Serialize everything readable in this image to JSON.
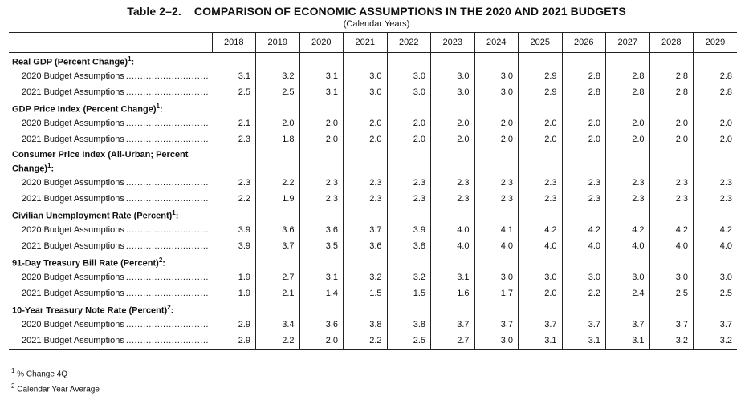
{
  "title": {
    "number": "Table 2–2.",
    "text": "COMPARISON OF ECONOMIC ASSUMPTIONS IN THE 2020 AND 2021 BUDGETS"
  },
  "subtitle": "(Calendar Years)",
  "years": [
    "2018",
    "2019",
    "2020",
    "2021",
    "2022",
    "2023",
    "2024",
    "2025",
    "2026",
    "2027",
    "2028",
    "2029"
  ],
  "sections": [
    {
      "title": "Real GDP (Percent Change)",
      "note": "1",
      "tall": false,
      "rows": [
        {
          "label": "2020 Budget Assumptions",
          "values": [
            "3.1",
            "3.2",
            "3.1",
            "3.0",
            "3.0",
            "3.0",
            "3.0",
            "2.9",
            "2.8",
            "2.8",
            "2.8",
            "2.8"
          ]
        },
        {
          "label": "2021 Budget Assumptions",
          "values": [
            "2.5",
            "2.5",
            "3.1",
            "3.0",
            "3.0",
            "3.0",
            "3.0",
            "2.9",
            "2.8",
            "2.8",
            "2.8",
            "2.8"
          ]
        }
      ]
    },
    {
      "title": "GDP Price Index (Percent Change)",
      "note": "1",
      "tall": false,
      "rows": [
        {
          "label": "2020 Budget Assumptions",
          "values": [
            "2.1",
            "2.0",
            "2.0",
            "2.0",
            "2.0",
            "2.0",
            "2.0",
            "2.0",
            "2.0",
            "2.0",
            "2.0",
            "2.0"
          ]
        },
        {
          "label": "2021 Budget Assumptions",
          "values": [
            "2.3",
            "1.8",
            "2.0",
            "2.0",
            "2.0",
            "2.0",
            "2.0",
            "2.0",
            "2.0",
            "2.0",
            "2.0",
            "2.0"
          ]
        }
      ]
    },
    {
      "title": "Consumer Price Index (All-Urban; Percent",
      "title2": "Change)",
      "note": "1",
      "tall": true,
      "rows": [
        {
          "label": "2020 Budget Assumptions",
          "values": [
            "2.3",
            "2.2",
            "2.3",
            "2.3",
            "2.3",
            "2.3",
            "2.3",
            "2.3",
            "2.3",
            "2.3",
            "2.3",
            "2.3"
          ]
        },
        {
          "label": "2021 Budget Assumptions",
          "values": [
            "2.2",
            "1.9",
            "2.3",
            "2.3",
            "2.3",
            "2.3",
            "2.3",
            "2.3",
            "2.3",
            "2.3",
            "2.3",
            "2.3"
          ]
        }
      ]
    },
    {
      "title": "Civilian Unemployment Rate (Percent)",
      "note": "1",
      "tall": false,
      "rows": [
        {
          "label": "2020 Budget Assumptions",
          "values": [
            "3.9",
            "3.6",
            "3.6",
            "3.7",
            "3.9",
            "4.0",
            "4.1",
            "4.2",
            "4.2",
            "4.2",
            "4.2",
            "4.2"
          ]
        },
        {
          "label": "2021 Budget Assumptions",
          "values": [
            "3.9",
            "3.7",
            "3.5",
            "3.6",
            "3.8",
            "4.0",
            "4.0",
            "4.0",
            "4.0",
            "4.0",
            "4.0",
            "4.0"
          ]
        }
      ]
    },
    {
      "title": "91-Day Treasury Bill Rate (Percent)",
      "note": "2",
      "tall": false,
      "rows": [
        {
          "label": "2020 Budget Assumptions",
          "values": [
            "1.9",
            "2.7",
            "3.1",
            "3.2",
            "3.2",
            "3.1",
            "3.0",
            "3.0",
            "3.0",
            "3.0",
            "3.0",
            "3.0"
          ]
        },
        {
          "label": "2021 Budget Assumptions",
          "values": [
            "1.9",
            "2.1",
            "1.4",
            "1.5",
            "1.5",
            "1.6",
            "1.7",
            "2.0",
            "2.2",
            "2.4",
            "2.5",
            "2.5"
          ]
        }
      ]
    },
    {
      "title": "10-Year Treasury Note Rate (Percent)",
      "note": "2",
      "tall": false,
      "rows": [
        {
          "label": "2020 Budget Assumptions",
          "values": [
            "2.9",
            "3.4",
            "3.6",
            "3.8",
            "3.8",
            "3.7",
            "3.7",
            "3.7",
            "3.7",
            "3.7",
            "3.7",
            "3.7"
          ]
        },
        {
          "label": "2021 Budget Assumptions",
          "values": [
            "2.9",
            "2.2",
            "2.0",
            "2.2",
            "2.5",
            "2.7",
            "3.0",
            "3.1",
            "3.1",
            "3.1",
            "3.2",
            "3.2"
          ]
        }
      ]
    }
  ],
  "footnotes": [
    {
      "mark": "1",
      "text": "% Change 4Q"
    },
    {
      "mark": "2",
      "text": "Calendar Year Average"
    }
  ]
}
